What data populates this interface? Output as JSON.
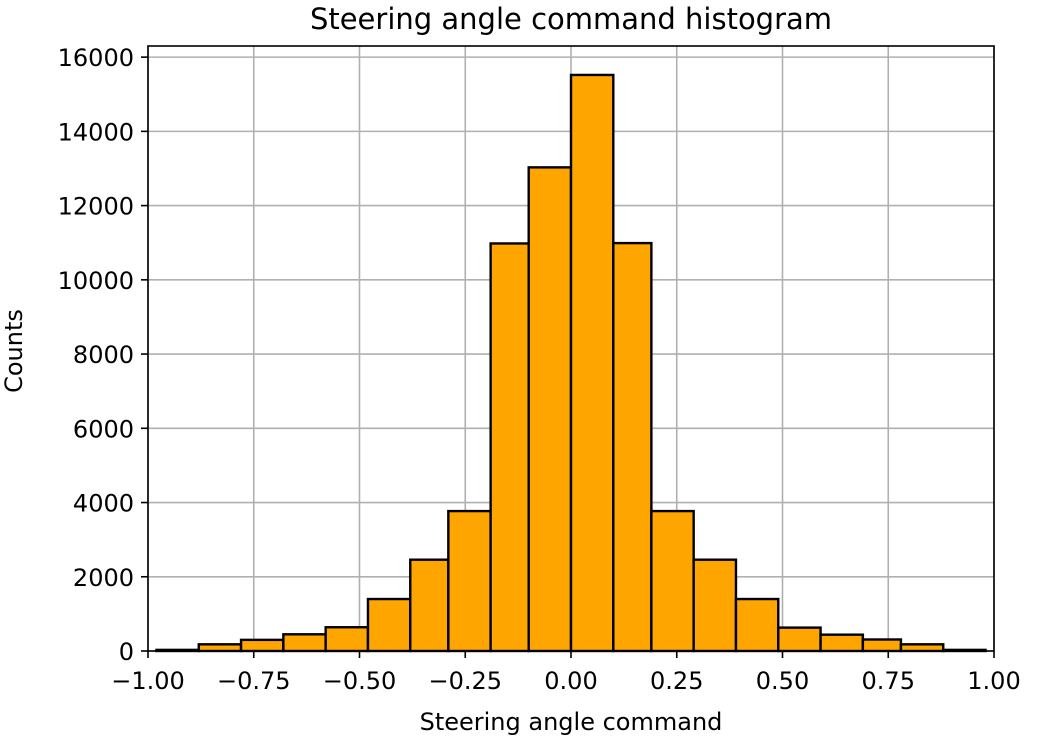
{
  "chart_data": {
    "type": "bar",
    "title": "Steering angle command histogram",
    "xlabel": "Steering angle command",
    "ylabel": "Counts",
    "xlim": [
      -1.0,
      1.0
    ],
    "ylim": [
      0,
      16300
    ],
    "grid": true,
    "bar_color": "#ffa500",
    "edge_color": "#000000",
    "grid_color": "#b0b0b0",
    "xticks": [
      -1.0,
      -0.75,
      -0.5,
      -0.25,
      0.0,
      0.25,
      0.5,
      0.75,
      1.0
    ],
    "xtick_labels": [
      "−1.00",
      "−0.75",
      "−0.50",
      "−0.25",
      "0.00",
      "0.25",
      "0.50",
      "0.75",
      "1.00"
    ],
    "yticks": [
      0,
      2000,
      4000,
      6000,
      8000,
      10000,
      12000,
      14000,
      16000
    ],
    "ytick_labels": [
      "0",
      "2000",
      "4000",
      "6000",
      "8000",
      "10000",
      "12000",
      "14000",
      "16000"
    ],
    "bins": [
      {
        "x0": -0.98,
        "x1": -0.88,
        "count": 30
      },
      {
        "x0": -0.88,
        "x1": -0.78,
        "count": 180
      },
      {
        "x0": -0.78,
        "x1": -0.68,
        "count": 300
      },
      {
        "x0": -0.68,
        "x1": -0.58,
        "count": 450
      },
      {
        "x0": -0.58,
        "x1": -0.48,
        "count": 640
      },
      {
        "x0": -0.48,
        "x1": -0.38,
        "count": 1400
      },
      {
        "x0": -0.38,
        "x1": -0.29,
        "count": 2460
      },
      {
        "x0": -0.29,
        "x1": -0.19,
        "count": 3770
      },
      {
        "x0": -0.19,
        "x1": -0.1,
        "count": 10980
      },
      {
        "x0": -0.1,
        "x1": 0.0,
        "count": 13030
      },
      {
        "x0": 0.0,
        "x1": 0.1,
        "count": 15520
      },
      {
        "x0": 0.1,
        "x1": 0.19,
        "count": 10990
      },
      {
        "x0": 0.19,
        "x1": 0.29,
        "count": 3770
      },
      {
        "x0": 0.29,
        "x1": 0.39,
        "count": 2460
      },
      {
        "x0": 0.39,
        "x1": 0.49,
        "count": 1400
      },
      {
        "x0": 0.49,
        "x1": 0.59,
        "count": 630
      },
      {
        "x0": 0.59,
        "x1": 0.69,
        "count": 440
      },
      {
        "x0": 0.69,
        "x1": 0.78,
        "count": 310
      },
      {
        "x0": 0.78,
        "x1": 0.88,
        "count": 180
      },
      {
        "x0": 0.88,
        "x1": 0.98,
        "count": 30
      }
    ]
  }
}
